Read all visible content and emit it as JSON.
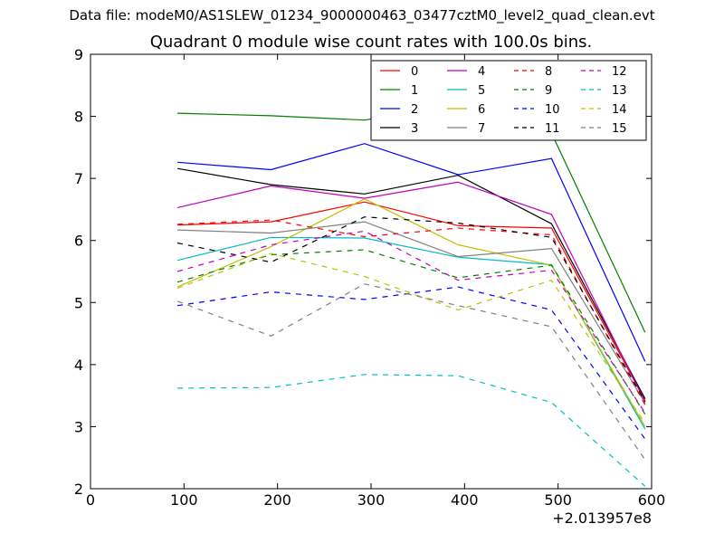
{
  "figure": {
    "suptitle": "Data file: modeM0/AS1SLEW_01234_9000000463_03477cztM0_level2_quad_clean.evt",
    "title": "Quadrant 0 module wise count rates with 100.0s bins."
  },
  "chart_data": {
    "type": "line",
    "title": "Quadrant 0 module wise count rates with 100.0s bins.",
    "xlabel": "",
    "ylabel": "",
    "x_offset_label": "+2.013957e8",
    "xlim": [
      0,
      600
    ],
    "ylim": [
      2,
      9
    ],
    "x_ticks": [
      0,
      100,
      200,
      300,
      400,
      500,
      600
    ],
    "y_ticks": [
      2,
      3,
      4,
      5,
      6,
      7,
      8,
      9
    ],
    "grid": false,
    "legend_position": "top-right",
    "legend_columns": 4,
    "x": [
      93,
      193,
      293,
      393,
      493,
      593
    ],
    "series": [
      {
        "name": "0",
        "color": "#ff0000",
        "dash": "solid",
        "values": [
          6.25,
          6.3,
          6.62,
          6.24,
          6.2,
          3.42
        ]
      },
      {
        "name": "1",
        "color": "#008000",
        "dash": "solid",
        "values": [
          8.05,
          8.01,
          7.94,
          8.19,
          7.73,
          4.52
        ]
      },
      {
        "name": "2",
        "color": "#0000ff",
        "dash": "solid",
        "values": [
          7.26,
          7.14,
          7.56,
          7.06,
          7.32,
          4.05
        ]
      },
      {
        "name": "3",
        "color": "#000000",
        "dash": "solid",
        "values": [
          7.16,
          6.9,
          6.75,
          7.05,
          6.27,
          3.45
        ]
      },
      {
        "name": "4",
        "color": "#bf00bf",
        "dash": "solid",
        "values": [
          6.53,
          6.88,
          6.68,
          6.94,
          6.42,
          3.4
        ]
      },
      {
        "name": "5",
        "color": "#00bfbf",
        "dash": "solid",
        "values": [
          5.68,
          6.05,
          6.04,
          5.73,
          5.61,
          2.96
        ]
      },
      {
        "name": "6",
        "color": "#bfbf00",
        "dash": "solid",
        "values": [
          5.25,
          5.9,
          6.67,
          5.93,
          5.6,
          3.0
        ]
      },
      {
        "name": "7",
        "color": "#808080",
        "dash": "solid",
        "values": [
          6.17,
          6.12,
          6.3,
          5.74,
          5.87,
          3.38
        ]
      },
      {
        "name": "8",
        "color": "#ff0000",
        "dash": "dashed",
        "values": [
          6.26,
          6.33,
          6.06,
          6.2,
          6.09,
          3.35
        ]
      },
      {
        "name": "9",
        "color": "#008000",
        "dash": "dashed",
        "values": [
          5.33,
          5.77,
          5.85,
          5.4,
          5.6,
          3.2
        ]
      },
      {
        "name": "10",
        "color": "#0000ff",
        "dash": "dashed",
        "values": [
          4.95,
          5.17,
          5.05,
          5.25,
          4.88,
          2.8
        ]
      },
      {
        "name": "11",
        "color": "#000000",
        "dash": "dashed",
        "values": [
          5.96,
          5.65,
          6.38,
          6.28,
          6.05,
          3.4
        ]
      },
      {
        "name": "12",
        "color": "#bf00bf",
        "dash": "dashed",
        "values": [
          5.5,
          5.93,
          6.15,
          5.36,
          5.52,
          3.22
        ]
      },
      {
        "name": "13",
        "color": "#00bfbf",
        "dash": "dashed",
        "values": [
          3.62,
          3.63,
          3.84,
          3.82,
          3.39,
          2.04
        ]
      },
      {
        "name": "14",
        "color": "#bfbf00",
        "dash": "dashed",
        "values": [
          5.23,
          5.79,
          5.42,
          4.88,
          5.36,
          3.05
        ]
      },
      {
        "name": "15",
        "color": "#808080",
        "dash": "dashed",
        "values": [
          5.02,
          4.46,
          5.3,
          4.95,
          4.61,
          2.47
        ]
      }
    ]
  }
}
